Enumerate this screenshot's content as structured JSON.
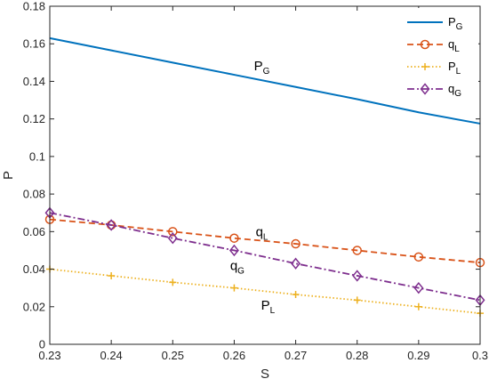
{
  "chart_data": {
    "type": "line",
    "xlabel": "S",
    "ylabel": "P",
    "xlim": [
      0.23,
      0.3
    ],
    "ylim": [
      0,
      0.18
    ],
    "x_ticks": [
      "0.23",
      "0.24",
      "0.25",
      "0.26",
      "0.27",
      "0.28",
      "0.29",
      "0.3"
    ],
    "y_ticks": [
      "0",
      "0.02",
      "0.04",
      "0.06",
      "0.08",
      "0.1",
      "0.12",
      "0.14",
      "0.16",
      "0.18"
    ],
    "grid": false,
    "legend_position": "top-right",
    "x": [
      0.23,
      0.24,
      0.25,
      0.26,
      0.27,
      0.28,
      0.29,
      0.3
    ],
    "series": [
      {
        "key": "PG",
        "name_main": "P",
        "name_sub": "G",
        "color": "#0072BD",
        "style": "solid",
        "marker": "none",
        "values": [
          0.163,
          0.1565,
          0.15,
          0.1435,
          0.137,
          0.1305,
          0.1235,
          0.1175
        ]
      },
      {
        "key": "qL",
        "name_main": "q",
        "name_sub": "L",
        "color": "#D95319",
        "style": "dashed",
        "marker": "circle",
        "values": [
          0.0665,
          0.0635,
          0.06,
          0.0565,
          0.0535,
          0.05,
          0.0465,
          0.0435
        ]
      },
      {
        "key": "PL",
        "name_main": "P",
        "name_sub": "L",
        "color": "#EDB120",
        "style": "dotted",
        "marker": "plus",
        "values": [
          0.04,
          0.0365,
          0.033,
          0.03,
          0.0265,
          0.0235,
          0.02,
          0.0165
        ]
      },
      {
        "key": "qG",
        "name_main": "q",
        "name_sub": "G",
        "color": "#7E2F8E",
        "style": "dashdot",
        "marker": "diamond",
        "values": [
          0.07,
          0.0635,
          0.0565,
          0.05,
          0.043,
          0.0365,
          0.03,
          0.0235
        ]
      }
    ],
    "annotations": [
      {
        "main": "P",
        "sub": "G",
        "x": 0.2645,
        "y": 0.146
      },
      {
        "main": "q",
        "sub": "L",
        "x": 0.2645,
        "y": 0.0575
      },
      {
        "main": "q",
        "sub": "G",
        "x": 0.2605,
        "y": 0.0395
      },
      {
        "main": "P",
        "sub": "L",
        "x": 0.2655,
        "y": 0.0185
      }
    ]
  }
}
